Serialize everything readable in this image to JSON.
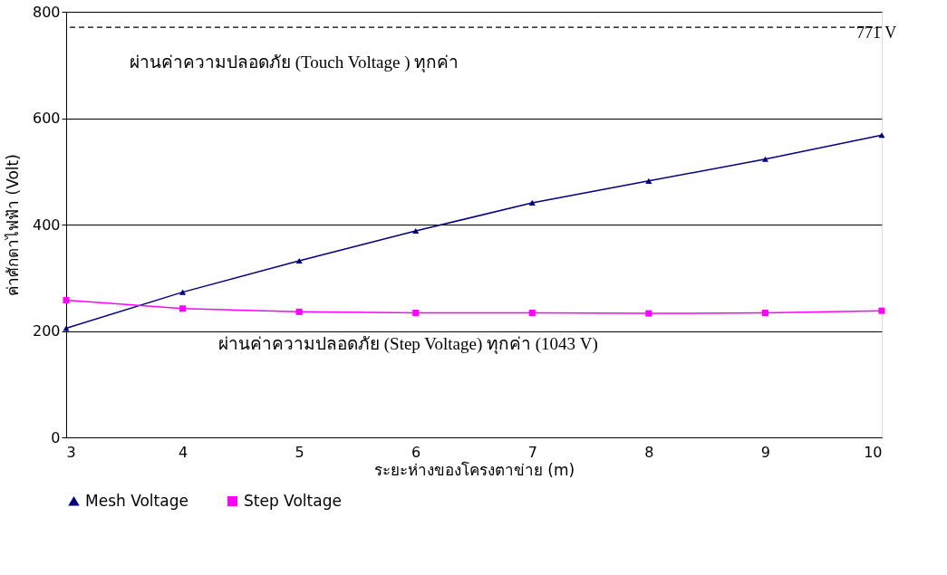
{
  "chart_data": {
    "type": "line",
    "xlabel": "ระยะห่างของโครงตาข่าย (m)",
    "ylabel": "ค่าศักดาไฟฟ้า (Volt)",
    "x": [
      3,
      4,
      5,
      6,
      7,
      8,
      9,
      10
    ],
    "series": [
      {
        "name": "Mesh Voltage",
        "color": "#000080",
        "marker": "triangle",
        "values": [
          205,
          273,
          332,
          388,
          441,
          482,
          523,
          568
        ]
      },
      {
        "name": "Step Voltage",
        "color": "#ff00ff",
        "marker": "square",
        "values": [
          258,
          242,
          236,
          234,
          234,
          233,
          234,
          238
        ]
      }
    ],
    "xlim": [
      3,
      10
    ],
    "xticks": [
      3,
      4,
      5,
      6,
      7,
      8,
      9,
      10
    ],
    "ylim": [
      0,
      800
    ],
    "yticks": [
      0,
      200,
      400,
      600,
      800
    ],
    "grid": "y",
    "legend": "bottom",
    "line_style": "solid",
    "ref_lines": [
      {
        "axis": "y",
        "value": 771,
        "label": "771 V",
        "line_style": "dashed",
        "color": "#000000"
      }
    ],
    "annotations": [
      "ผ่านค่าความปลอดภัย (Touch Voltage ) ทุกค่า",
      "ผ่านค่าความปลอดภัย (Step Voltage) ทุกค่า (1043 V)"
    ]
  }
}
